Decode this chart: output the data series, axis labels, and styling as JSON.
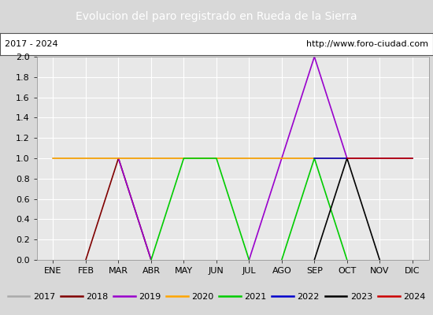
{
  "title": "Evolucion del paro registrado en Rueda de la Sierra",
  "title_bg": "#4a86c8",
  "subtitle_left": "2017 - 2024",
  "subtitle_right": "http://www.foro-ciudad.com",
  "months": [
    "ENE",
    "FEB",
    "MAR",
    "ABR",
    "MAY",
    "JUN",
    "JUL",
    "AGO",
    "SEP",
    "OCT",
    "NOV",
    "DIC"
  ],
  "ylim": [
    0.0,
    2.0
  ],
  "yticks": [
    0.0,
    0.2,
    0.4,
    0.6,
    0.8,
    1.0,
    1.2,
    1.4,
    1.6,
    1.8,
    2.0
  ],
  "series": [
    {
      "label": "2017",
      "color": "#aaaaaa",
      "segments": [
        [
          1,
          1,
          1,
          1,
          1,
          1,
          1,
          1,
          1,
          1,
          1,
          1
        ]
      ]
    },
    {
      "label": "2018",
      "color": "#800000",
      "segments": [
        [
          null,
          0,
          1,
          0,
          null,
          null,
          null,
          null,
          null,
          null,
          null,
          null
        ]
      ]
    },
    {
      "label": "2019",
      "color": "#9900cc",
      "segments": [
        [
          null,
          null,
          null,
          null,
          null,
          null,
          0,
          null,
          2,
          1,
          null,
          null
        ],
        [
          null,
          null,
          1,
          0,
          null,
          null,
          null,
          null,
          null,
          null,
          null,
          null
        ]
      ]
    },
    {
      "label": "2020",
      "color": "#ffa500",
      "segments": [
        [
          1,
          1,
          1,
          1,
          1,
          1,
          1,
          1,
          1,
          1,
          1,
          1
        ]
      ]
    },
    {
      "label": "2021",
      "color": "#00cc00",
      "segments": [
        [
          null,
          null,
          null,
          0,
          1,
          1,
          0,
          null,
          null,
          null,
          null,
          null
        ],
        [
          null,
          null,
          null,
          null,
          null,
          null,
          null,
          0,
          1,
          0,
          null,
          null
        ]
      ]
    },
    {
      "label": "2022",
      "color": "#0000cc",
      "segments": [
        [
          null,
          null,
          null,
          null,
          null,
          null,
          null,
          null,
          1,
          1,
          1,
          1
        ]
      ]
    },
    {
      "label": "2023",
      "color": "#000000",
      "segments": [
        [
          null,
          null,
          null,
          null,
          null,
          null,
          null,
          null,
          0,
          1,
          0,
          null
        ]
      ]
    },
    {
      "label": "2024",
      "color": "#cc0000",
      "segments": [
        [
          null,
          null,
          null,
          null,
          null,
          null,
          null,
          null,
          null,
          1,
          1,
          1
        ]
      ]
    }
  ],
  "plot_bg": "#e8e8e8",
  "fig_bg": "#d8d8d8",
  "grid_color": "#ffffff",
  "legend_bg": "#d0d0d0",
  "title_fontsize": 10,
  "tick_fontsize": 8,
  "legend_fontsize": 8
}
